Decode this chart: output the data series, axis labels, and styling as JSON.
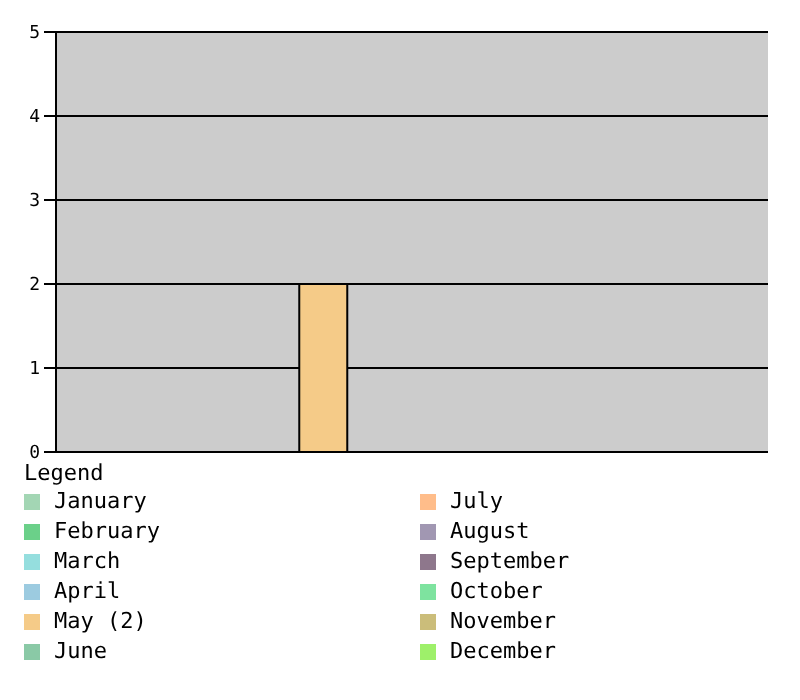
{
  "chart_data": {
    "type": "bar",
    "legend_title": "Legend",
    "categories": [
      null,
      null,
      null,
      null,
      null,
      null,
      null,
      null,
      null,
      null,
      null,
      null
    ],
    "series": [
      {
        "name": "January",
        "color": "#a3d6b4",
        "values": [
          0,
          null,
          null,
          null,
          null,
          null,
          null,
          null,
          null,
          null,
          null,
          null
        ]
      },
      {
        "name": "February",
        "color": "#6bd089",
        "values": [
          null,
          0,
          null,
          null,
          null,
          null,
          null,
          null,
          null,
          null,
          null,
          null
        ]
      },
      {
        "name": "March",
        "color": "#95dede",
        "values": [
          null,
          null,
          0,
          null,
          null,
          null,
          null,
          null,
          null,
          null,
          null,
          null
        ]
      },
      {
        "name": "April",
        "color": "#9ccbe0",
        "values": [
          null,
          null,
          null,
          0,
          null,
          null,
          null,
          null,
          null,
          null,
          null,
          null
        ]
      },
      {
        "name": "May (2)",
        "color": "#f5cb88",
        "values": [
          null,
          null,
          null,
          null,
          2,
          null,
          null,
          null,
          null,
          null,
          null,
          null
        ]
      },
      {
        "name": "June",
        "color": "#8ac9a6",
        "values": [
          null,
          null,
          null,
          null,
          null,
          0,
          null,
          null,
          null,
          null,
          null,
          null
        ]
      },
      {
        "name": "July",
        "color": "#ffbd8a",
        "values": [
          null,
          null,
          null,
          null,
          null,
          null,
          0,
          null,
          null,
          null,
          null,
          null
        ]
      },
      {
        "name": "August",
        "color": "#a197b2",
        "values": [
          null,
          null,
          null,
          null,
          null,
          null,
          null,
          0,
          null,
          null,
          null,
          null
        ]
      },
      {
        "name": "September",
        "color": "#8e778c",
        "values": [
          null,
          null,
          null,
          null,
          null,
          null,
          null,
          null,
          0,
          null,
          null,
          null
        ]
      },
      {
        "name": "October",
        "color": "#7ee39f",
        "values": [
          null,
          null,
          null,
          null,
          null,
          null,
          null,
          null,
          null,
          0,
          null,
          null
        ]
      },
      {
        "name": "November",
        "color": "#cbbd7a",
        "values": [
          null,
          null,
          null,
          null,
          null,
          null,
          null,
          null,
          null,
          null,
          0,
          null
        ]
      },
      {
        "name": "December",
        "color": "#9ef06a",
        "values": [
          null,
          null,
          null,
          null,
          null,
          null,
          null,
          null,
          null,
          null,
          null,
          0
        ]
      }
    ],
    "ylim": [
      0,
      5
    ],
    "yticks": [
      0,
      1,
      2,
      3,
      4,
      5
    ],
    "grid": "y",
    "legend": "bottom",
    "tick_labels": "y"
  }
}
